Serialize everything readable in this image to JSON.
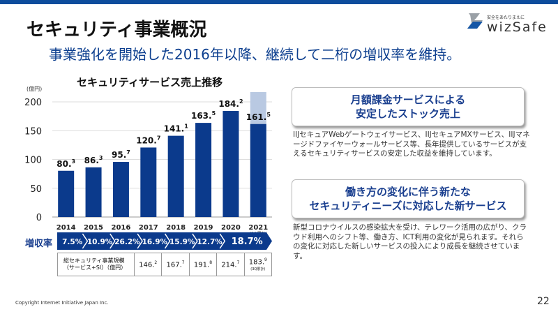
{
  "header": {
    "title": "セキュリティ事業概況",
    "subtitle": "事業強化を開始した2016年以降、継続して二桁の増収率を維持。"
  },
  "logo": {
    "tagline": "安全をあたりまえに",
    "name": "wizSafe"
  },
  "chart_data": {
    "type": "bar",
    "title": "セキュリティサービス売上推移",
    "ylabel": "(億円)",
    "ylim": [
      0,
      200
    ],
    "yticks": [
      0,
      50,
      100,
      150,
      200
    ],
    "categories": [
      "2014",
      "2015",
      "2016",
      "2017",
      "2018",
      "2019",
      "2020",
      "2021"
    ],
    "category_note_2021": "(3Q累計)",
    "values": [
      80.3,
      86.3,
      95.7,
      120.7,
      141.1,
      163.5,
      184.2,
      161.5
    ],
    "forecast_2021": 217,
    "colors": {
      "bar": "#0b3a8c",
      "forecast": "#b9c9e2",
      "grid": "#dddddd"
    }
  },
  "growth": {
    "label": "増収率",
    "rates": [
      "7.5%",
      "10.9%",
      "26.2%",
      "16.9%",
      "15.9%",
      "12.7%",
      "18.7%"
    ]
  },
  "scale_table": {
    "label_line1": "総セキュリティ事業規模",
    "label_line2": "（サービス+SI）（億円）",
    "values": [
      {
        "int": "146.",
        "dec": "2"
      },
      {
        "int": "167.",
        "dec": "7"
      },
      {
        "int": "191.",
        "dec": "8"
      },
      {
        "int": "214.",
        "dec": "7"
      },
      {
        "int": "183.",
        "dec": "9"
      }
    ],
    "note": "(3Q累計)"
  },
  "box1": {
    "line1": "月額課金サービスによる",
    "line2": "安定したストック売上",
    "desc": "IIJセキュアWebゲートウェイサービス、IIJセキュアMXサービス、IIJマネージドファイヤーウォールサービス等、長年提供しているサービスが支えるセキュリティサービスの安定した収益を維持しています。"
  },
  "box2": {
    "line1": "働き方の変化に伴う新たな",
    "line2": "セキュリティニーズに対応した新サービス",
    "desc": "新型コロナウイルスの感染拡大を受け、テレワーク活用の広がり、クラウド利用へのシフト等、働き方、ICT利用の変化が見られます。それらの変化に対応した新しいサービスの投入により成長を継続させています。"
  },
  "footer": {
    "copyright": "Copyright Internet Initiative Japan Inc.",
    "page": "22"
  }
}
